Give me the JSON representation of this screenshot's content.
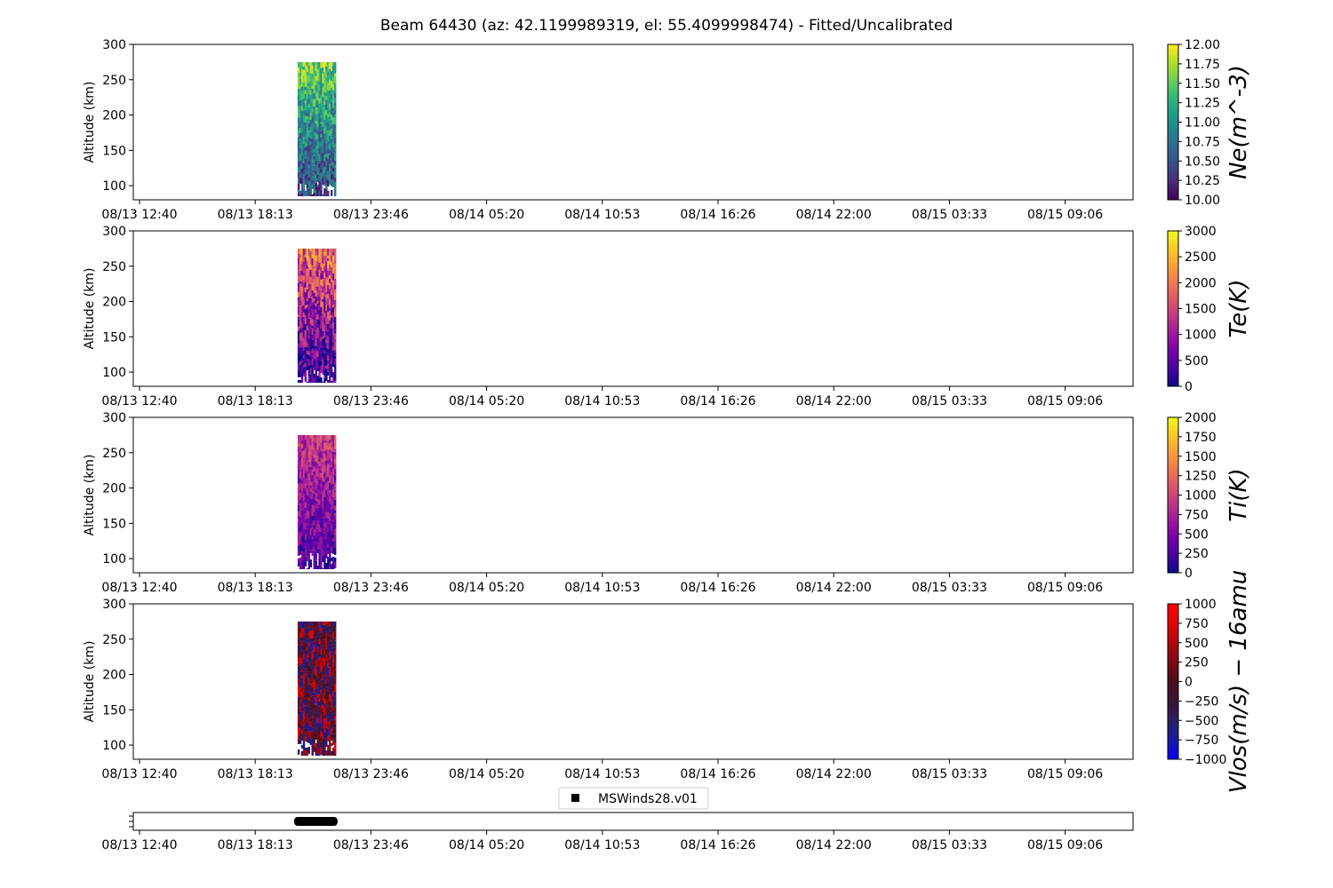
{
  "title": "Beam 64430 (az: 42.1199989319, el: 55.4099998474) - Fitted/Uncalibrated",
  "x_tick_labels": [
    "08/13 12:40",
    "08/13 18:13",
    "08/13 23:46",
    "08/14 05:20",
    "08/14 10:53",
    "08/14 16:26",
    "08/14 22:00",
    "08/15 03:33",
    "08/15 09:06"
  ],
  "legend_label": "MSWinds28.v01",
  "chart_data": [
    {
      "type": "heatmap",
      "panel": "Ne",
      "ylabel": "Altitude (km)",
      "ylim": [
        80,
        300
      ],
      "y_ticks": [
        100,
        150,
        200,
        250,
        300
      ],
      "data_x_range": [
        "08/13 20:15",
        "08/13 22:05"
      ],
      "data_y_range": [
        85,
        275
      ],
      "colorbar_label": "Ne(m^-3)",
      "clim": [
        10.0,
        12.0
      ],
      "colorbar_ticks": [
        "10.00",
        "10.25",
        "10.50",
        "10.75",
        "11.00",
        "11.25",
        "11.50",
        "11.75",
        "12.00"
      ],
      "colormap": "viridis"
    },
    {
      "type": "heatmap",
      "panel": "Te",
      "ylabel": "Altitude (km)",
      "ylim": [
        80,
        300
      ],
      "y_ticks": [
        100,
        150,
        200,
        250,
        300
      ],
      "data_x_range": [
        "08/13 20:15",
        "08/13 22:05"
      ],
      "data_y_range": [
        85,
        275
      ],
      "colorbar_label": "Te(K)",
      "clim": [
        0,
        3000
      ],
      "colorbar_ticks": [
        "0",
        "500",
        "1000",
        "1500",
        "2000",
        "2500",
        "3000"
      ],
      "colormap": "plasma"
    },
    {
      "type": "heatmap",
      "panel": "Ti",
      "ylabel": "Altitude (km)",
      "ylim": [
        80,
        300
      ],
      "y_ticks": [
        100,
        150,
        200,
        250,
        300
      ],
      "data_x_range": [
        "08/13 20:15",
        "08/13 22:05"
      ],
      "data_y_range": [
        85,
        275
      ],
      "colorbar_label": "Ti(K)",
      "clim": [
        0,
        2000
      ],
      "colorbar_ticks": [
        "0",
        "250",
        "500",
        "750",
        "1000",
        "1250",
        "1500",
        "1750",
        "2000"
      ],
      "colormap": "plasma"
    },
    {
      "type": "heatmap",
      "panel": "Vlos",
      "ylabel": "Altitude (km)",
      "ylim": [
        80,
        300
      ],
      "y_ticks": [
        100,
        150,
        200,
        250,
        300
      ],
      "data_x_range": [
        "08/13 20:15",
        "08/13 22:05"
      ],
      "data_y_range": [
        85,
        275
      ],
      "colorbar_label": "Vlos(m/s) − 16amu",
      "clim": [
        -1000,
        1000
      ],
      "colorbar_ticks": [
        "−1000",
        "−750",
        "−500",
        "−250",
        "0",
        "250",
        "500",
        "750",
        "1000"
      ],
      "colormap": "seismic-dark"
    }
  ],
  "coverage": {
    "series": "MSWinds28.v01",
    "x_range": [
      "08/13 20:05",
      "08/13 22:10"
    ]
  },
  "colors": {
    "viridis": [
      "#440154",
      "#482878",
      "#3e4989",
      "#31688e",
      "#26828e",
      "#1f9e89",
      "#35b779",
      "#6ece58",
      "#b5de2b",
      "#fde725"
    ],
    "plasma": [
      "#0d0887",
      "#46039f",
      "#7201a8",
      "#9c179e",
      "#bd3786",
      "#d8576b",
      "#ed7953",
      "#fb9f3a",
      "#fdca26",
      "#f0f921"
    ],
    "seismic-dark": [
      "#0000ff",
      "#1a1aa8",
      "#2a1f63",
      "#3a1635",
      "#4a0f1e",
      "#7a0a14",
      "#b0060c",
      "#e00306",
      "#ff0000"
    ]
  }
}
